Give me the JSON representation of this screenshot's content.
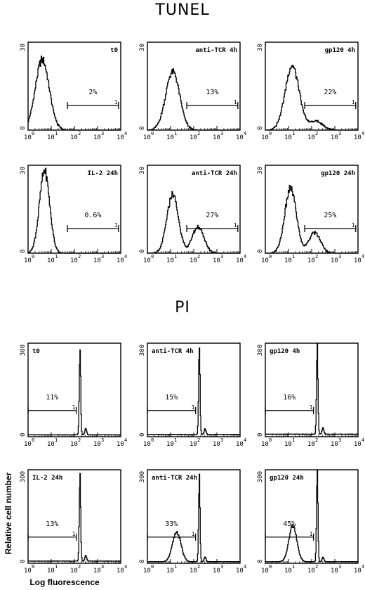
{
  "sections": [
    {
      "title": "TUNEL"
    },
    {
      "title": "PI"
    }
  ],
  "shared_axis": {
    "ylabel": "Relative cell number",
    "xlabel": "Log fluorescence"
  },
  "chart_data": [
    {
      "type": "histogram",
      "section": "TUNEL",
      "label": "t0",
      "xscale": "log",
      "xlim": [
        1,
        10000
      ],
      "x_ticks": [
        "10",
        "10",
        "10",
        "10",
        "10"
      ],
      "x_tick_exponents": [
        "0",
        "1",
        "2",
        "3",
        "4"
      ],
      "y_ticks": [
        "0",
        "30"
      ],
      "ylim": [
        0,
        30
      ],
      "gate_percent": "2%",
      "gate_marker": "1",
      "gate_range": [
        50,
        8000
      ],
      "peaks": [
        {
          "center": 4,
          "height": 24,
          "width": 0.3
        }
      ]
    },
    {
      "type": "histogram",
      "section": "TUNEL",
      "label": "anti-TCR 4h",
      "xscale": "log",
      "xlim": [
        1,
        10000
      ],
      "x_ticks": [
        "10",
        "10",
        "10",
        "10",
        "10"
      ],
      "x_tick_exponents": [
        "0",
        "1",
        "2",
        "3",
        "4"
      ],
      "y_ticks": [
        "0",
        "30"
      ],
      "ylim": [
        0,
        30
      ],
      "gate_percent": "13%",
      "gate_marker": "1",
      "gate_range": [
        50,
        8000
      ],
      "peaks": [
        {
          "center": 12,
          "height": 20,
          "width": 0.3
        }
      ]
    },
    {
      "type": "histogram",
      "section": "TUNEL",
      "label": "gp120 4h",
      "xscale": "log",
      "xlim": [
        1,
        10000
      ],
      "x_ticks": [
        "10",
        "10",
        "10",
        "10",
        "10"
      ],
      "x_tick_exponents": [
        "0",
        "1",
        "2",
        "3",
        "4"
      ],
      "y_ticks": [
        "0",
        "30"
      ],
      "ylim": [
        0,
        30
      ],
      "gate_percent": "22%",
      "gate_marker": "1",
      "gate_range": [
        50,
        8000
      ],
      "peaks": [
        {
          "center": 14,
          "height": 22,
          "width": 0.3
        },
        {
          "center": 150,
          "height": 3,
          "width": 0.3
        }
      ]
    },
    {
      "type": "histogram",
      "section": "TUNEL",
      "label": "IL-2 24h",
      "xscale": "log",
      "xlim": [
        1,
        10000
      ],
      "x_ticks": [
        "10",
        "10",
        "10",
        "10",
        "10"
      ],
      "x_tick_exponents": [
        "0",
        "1",
        "2",
        "3",
        "4"
      ],
      "y_ticks": [
        "0",
        "30"
      ],
      "ylim": [
        0,
        30
      ],
      "gate_percent": "0.6%",
      "gate_marker": "1",
      "gate_range": [
        50,
        8000
      ],
      "peaks": [
        {
          "center": 5,
          "height": 28,
          "width": 0.22
        }
      ]
    },
    {
      "type": "histogram",
      "section": "TUNEL",
      "label": "anti-TCR 24h",
      "xscale": "log",
      "xlim": [
        1,
        10000
      ],
      "x_ticks": [
        "10",
        "10",
        "10",
        "10",
        "10"
      ],
      "x_tick_exponents": [
        "0",
        "1",
        "2",
        "3",
        "4"
      ],
      "y_ticks": [
        "0",
        "30"
      ],
      "ylim": [
        0,
        30
      ],
      "gate_percent": "27%",
      "gate_marker": "1",
      "gate_range": [
        50,
        8000
      ],
      "peaks": [
        {
          "center": 12,
          "height": 20,
          "width": 0.25
        },
        {
          "center": 150,
          "height": 9,
          "width": 0.25
        }
      ]
    },
    {
      "type": "histogram",
      "section": "TUNEL",
      "label": "gp120 24h",
      "xscale": "log",
      "xlim": [
        1,
        10000
      ],
      "x_ticks": [
        "10",
        "10",
        "10",
        "10",
        "10"
      ],
      "x_tick_exponents": [
        "0",
        "1",
        "2",
        "3",
        "4"
      ],
      "y_ticks": [
        "0",
        "30"
      ],
      "ylim": [
        0,
        30
      ],
      "gate_percent": "25%",
      "gate_marker": "1",
      "gate_range": [
        50,
        8000
      ],
      "peaks": [
        {
          "center": 12,
          "height": 22,
          "width": 0.25
        },
        {
          "center": 130,
          "height": 7,
          "width": 0.25
        }
      ]
    },
    {
      "type": "histogram",
      "section": "PI",
      "label": "t0",
      "xscale": "log",
      "xlim": [
        1,
        10000
      ],
      "x_ticks": [
        "10",
        "10",
        "10",
        "10",
        "10"
      ],
      "x_tick_exponents": [
        "0",
        "1",
        "2",
        "3",
        "4"
      ],
      "y_ticks": [
        "0",
        "300"
      ],
      "ylim": [
        0,
        300
      ],
      "gate_percent": "11%",
      "gate_marker": "1",
      "gate_range": [
        1,
        120
      ],
      "peaks": [
        {
          "center": 170,
          "height": 290,
          "width": 0.03
        },
        {
          "center": 300,
          "height": 20,
          "width": 0.04
        }
      ],
      "baseline": 6
    },
    {
      "type": "histogram",
      "section": "PI",
      "label": "anti-TCR 4h",
      "xscale": "log",
      "xlim": [
        1,
        10000
      ],
      "x_ticks": [
        "10",
        "10",
        "10",
        "10",
        "10"
      ],
      "x_tick_exponents": [
        "0",
        "1",
        "2",
        "3",
        "4"
      ],
      "y_ticks": [
        "0",
        "300"
      ],
      "ylim": [
        0,
        300
      ],
      "gate_percent": "15%",
      "gate_marker": "1",
      "gate_range": [
        1,
        120
      ],
      "peaks": [
        {
          "center": 170,
          "height": 285,
          "width": 0.03
        },
        {
          "center": 300,
          "height": 18,
          "width": 0.04
        }
      ],
      "baseline": 7
    },
    {
      "type": "histogram",
      "section": "PI",
      "label": "gp120 4h",
      "xscale": "log",
      "xlim": [
        1,
        10000
      ],
      "x_ticks": [
        "10",
        "10",
        "10",
        "10",
        "10"
      ],
      "x_tick_exponents": [
        "0",
        "1",
        "2",
        "3",
        "4"
      ],
      "y_ticks": [
        "0",
        "300"
      ],
      "ylim": [
        0,
        300
      ],
      "gate_percent": "16%",
      "gate_marker": "1",
      "gate_range": [
        1,
        120
      ],
      "peaks": [
        {
          "center": 170,
          "height": 295,
          "width": 0.03
        },
        {
          "center": 300,
          "height": 20,
          "width": 0.04
        }
      ],
      "baseline": 8
    },
    {
      "type": "histogram",
      "section": "PI",
      "label": "IL-2 24h",
      "xscale": "log",
      "xlim": [
        1,
        10000
      ],
      "x_ticks": [
        "10",
        "10",
        "10",
        "10",
        "10"
      ],
      "x_tick_exponents": [
        "0",
        "1",
        "2",
        "3",
        "4"
      ],
      "y_ticks": [
        "0",
        "300"
      ],
      "ylim": [
        0,
        300
      ],
      "gate_percent": "13%",
      "gate_marker": "1",
      "gate_range": [
        1,
        120
      ],
      "peaks": [
        {
          "center": 170,
          "height": 285,
          "width": 0.03
        },
        {
          "center": 300,
          "height": 18,
          "width": 0.04
        }
      ],
      "baseline": 7
    },
    {
      "type": "histogram",
      "section": "PI",
      "label": "anti-TCR 24h",
      "xscale": "log",
      "xlim": [
        1,
        10000
      ],
      "x_ticks": [
        "10",
        "10",
        "10",
        "10",
        "10"
      ],
      "x_tick_exponents": [
        "0",
        "1",
        "2",
        "3",
        "4"
      ],
      "y_ticks": [
        "0",
        "300"
      ],
      "ylim": [
        0,
        300
      ],
      "gate_percent": "33%",
      "gate_marker": "1",
      "gate_range": [
        1,
        120
      ],
      "peaks": [
        {
          "center": 18,
          "height": 95,
          "width": 0.18
        },
        {
          "center": 170,
          "height": 275,
          "width": 0.03
        },
        {
          "center": 300,
          "height": 15,
          "width": 0.04
        }
      ],
      "baseline": 5
    },
    {
      "type": "histogram",
      "section": "PI",
      "label": "gp120 24h",
      "xscale": "log",
      "xlim": [
        1,
        10000
      ],
      "x_ticks": [
        "10",
        "10",
        "10",
        "10",
        "10"
      ],
      "x_tick_exponents": [
        "0",
        "1",
        "2",
        "3",
        "4"
      ],
      "y_ticks": [
        "0",
        "300"
      ],
      "ylim": [
        0,
        300
      ],
      "gate_percent": "45%",
      "gate_marker": "1",
      "gate_range": [
        1,
        120
      ],
      "peaks": [
        {
          "center": 15,
          "height": 115,
          "width": 0.17
        },
        {
          "center": 170,
          "height": 285,
          "width": 0.03
        },
        {
          "center": 300,
          "height": 15,
          "width": 0.04
        }
      ],
      "baseline": 5
    }
  ]
}
